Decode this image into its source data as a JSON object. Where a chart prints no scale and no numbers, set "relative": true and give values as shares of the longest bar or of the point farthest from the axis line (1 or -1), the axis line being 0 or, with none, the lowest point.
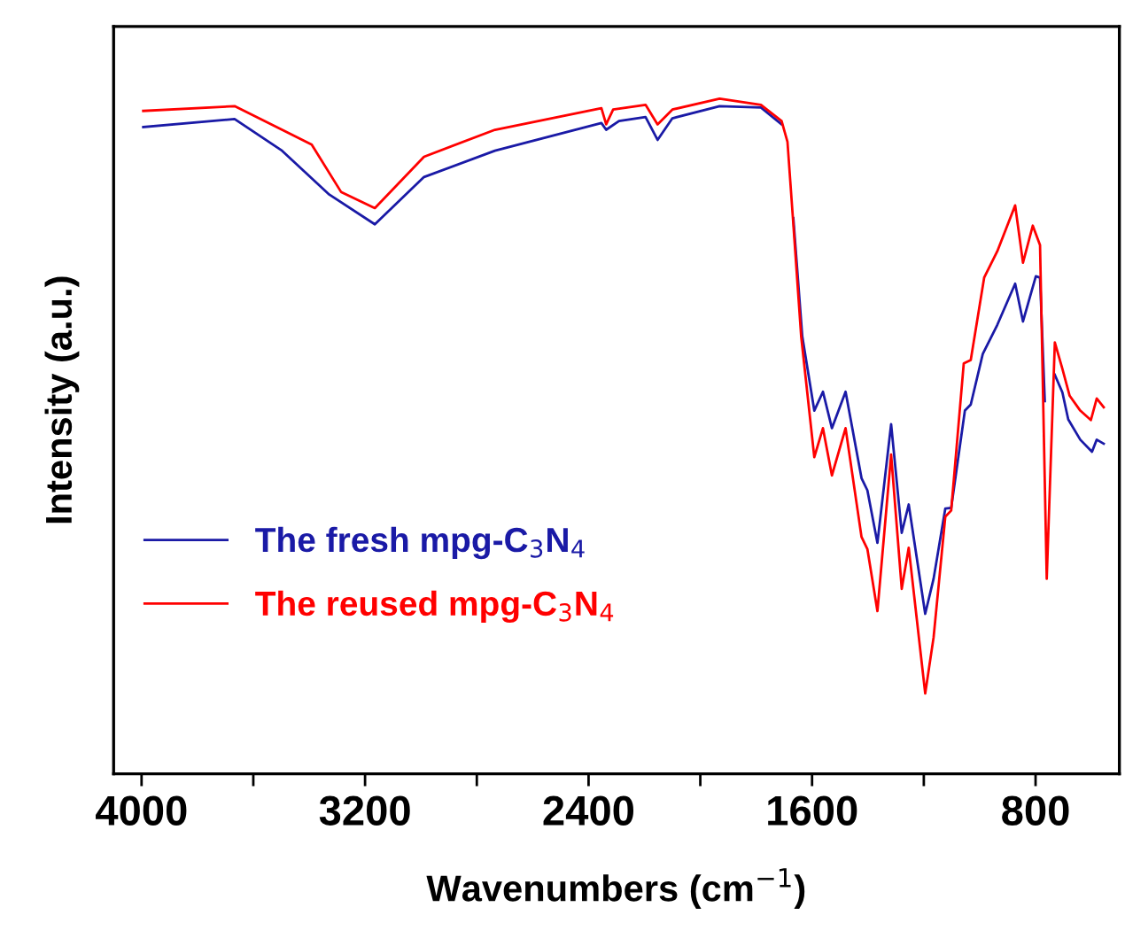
{
  "chart_data": {
    "type": "line",
    "relative": true,
    "xlabel": "Wavenumbers (cm$^{−1}$)",
    "ylabel": "Intensity (a.u.)",
    "xlim": [
      4100,
      500
    ],
    "xticks": [
      4000,
      {
        "value": 3600,
        "label": null
      },
      3200,
      {
        "value": 2800,
        "label": null
      },
      2400,
      {
        "value": 2000,
        "label": null
      },
      1600,
      {
        "value": 1200,
        "label": null
      },
      800
    ],
    "legend": "bottom left",
    "grid": false,
    "marker": "none",
    "line_style": "solid",
    "series": [
      {
        "name": "The fresh mpg-C$_{3}$N$_{4}$",
        "color": "#1a1aa6",
        "x": [
          3994,
          3667,
          3497,
          3328,
          3165,
          2989,
          2735,
          2354,
          2337,
          2291,
          2196,
          2153,
          2100,
          1931,
          1783,
          1709,
          1688,
          1667,
          1635,
          1592,
          1561,
          1529,
          1480,
          1423,
          1402,
          1366,
          1317,
          1279,
          1254,
          1195,
          1165,
          1123,
          1102,
          1053,
          1032,
          989,
          937,
          873,
          845,
          799,
          784,
          767,
          760,
          731,
          704,
          683,
          640,
          598,
          581,
          556
        ],
        "values": [
          0.958,
          0.97,
          0.923,
          0.858,
          0.814,
          0.884,
          0.923,
          0.964,
          0.954,
          0.967,
          0.973,
          0.939,
          0.971,
          0.989,
          0.987,
          0.962,
          null,
          0.823,
          0.648,
          0.538,
          0.566,
          0.512,
          0.566,
          0.438,
          0.42,
          0.342,
          0.518,
          0.357,
          0.399,
          0.237,
          0.289,
          0.393,
          0.394,
          0.538,
          0.547,
          0.622,
          0.665,
          0.726,
          0.67,
          0.737,
          0.735,
          0.552,
          null,
          0.591,
          0.565,
          0.525,
          0.495,
          0.477,
          0.495,
          0.489
        ]
      },
      {
        "name": "The reused mpg-C$_{3}$N$_{4}$",
        "color": "#ff0000",
        "x": [
          3994,
          3667,
          3497,
          3391,
          3286,
          3165,
          2989,
          2735,
          2354,
          2337,
          2312,
          2196,
          2153,
          2100,
          1931,
          1783,
          1709,
          1688,
          1667,
          1639,
          1592,
          1561,
          1529,
          1480,
          1423,
          1402,
          1366,
          1317,
          1279,
          1254,
          1195,
          1165,
          1123,
          1102,
          1057,
          1032,
          984,
          937,
          873,
          845,
          810,
          784,
          760,
          731,
          704,
          678,
          640,
          602,
          581,
          556
        ],
        "values": [
          0.982,
          0.989,
          0.954,
          0.932,
          0.862,
          0.838,
          0.914,
          0.954,
          0.986,
          0.962,
          0.984,
          0.991,
          0.962,
          0.984,
          1.0,
          0.991,
          0.967,
          0.936,
          0.814,
          0.648,
          0.469,
          0.512,
          0.442,
          0.512,
          0.351,
          0.333,
          0.241,
          0.473,
          0.274,
          0.335,
          0.119,
          0.202,
          0.381,
          0.39,
          0.608,
          0.613,
          0.735,
          0.774,
          0.842,
          0.757,
          0.812,
          0.783,
          0.289,
          0.639,
          0.6,
          0.56,
          0.538,
          0.524,
          0.556,
          0.543
        ]
      }
    ]
  }
}
